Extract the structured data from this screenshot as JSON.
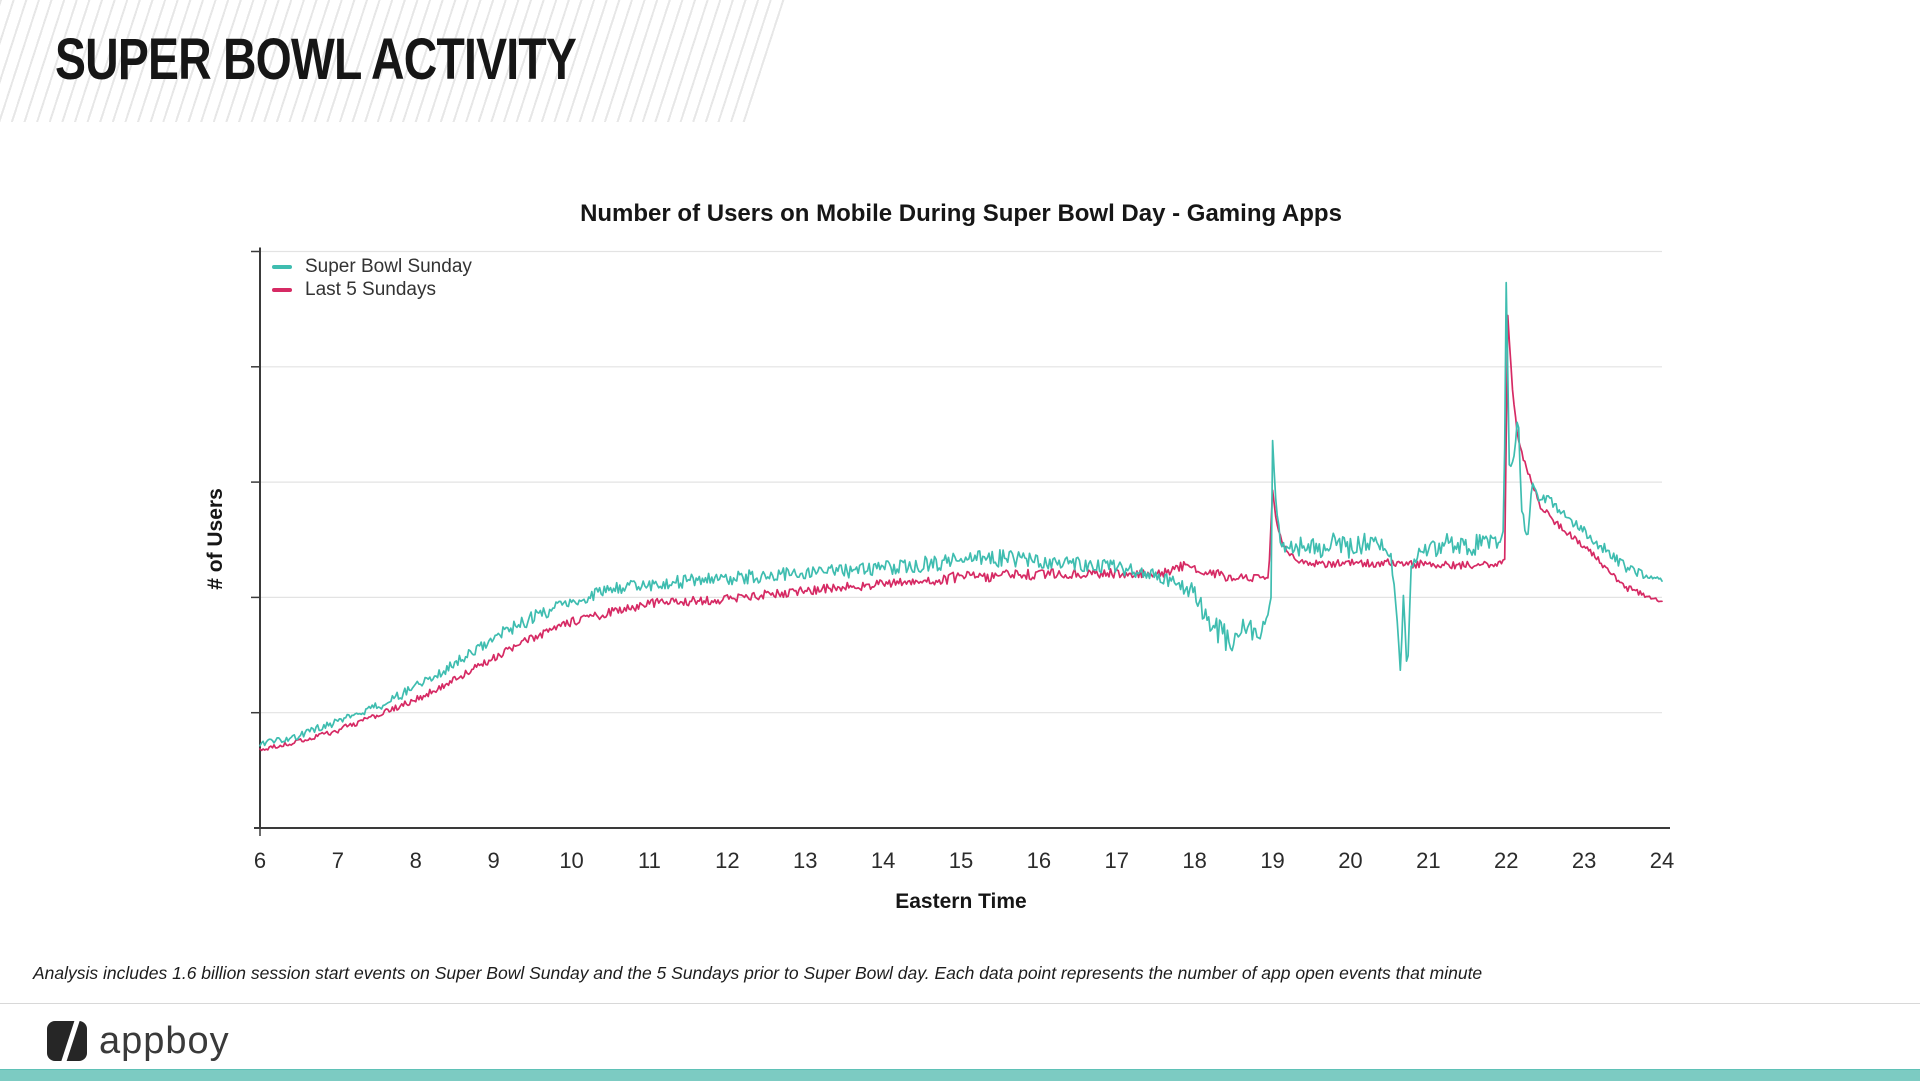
{
  "header": {
    "title": "SUPER BOWL ACTIVITY"
  },
  "chart": {
    "title": "Number of Users on Mobile During Super Bowl Day - Gaming Apps",
    "x_label": "Eastern Time",
    "y_label": "# of Users",
    "legend": [
      {
        "label": "Super Bowl Sunday",
        "color": "#3fbdb0"
      },
      {
        "label": "Last 5 Sundays",
        "color": "#d62a64"
      }
    ]
  },
  "chart_data": {
    "type": "line",
    "title": "Number of Users on Mobile During Super Bowl Day - Gaming Apps",
    "xlabel": "Eastern Time",
    "ylabel": "# of Users",
    "x_range": [
      6,
      24
    ],
    "x_ticks": [
      6,
      7,
      8,
      9,
      10,
      11,
      12,
      13,
      14,
      15,
      16,
      17,
      18,
      19,
      20,
      21,
      22,
      23,
      24
    ],
    "y_range_relative": [
      0,
      100
    ],
    "y_gridlines": 5,
    "y_tick_labels_visible": false,
    "legend_position": "top-left-inside",
    "grid": "horizontal-only",
    "noise_seed": 20,
    "series": [
      {
        "name": "Super Bowl Sunday",
        "color": "#3fbdb0",
        "keypoints": [
          [
            6,
            14.5,
            0.5
          ],
          [
            6.5,
            16,
            0.7
          ],
          [
            7,
            18.5,
            0.7
          ],
          [
            7.5,
            21,
            0.8
          ],
          [
            8,
            24.5,
            0.9
          ],
          [
            8.5,
            28.5,
            0.9
          ],
          [
            9,
            33,
            1
          ],
          [
            9.5,
            36.5,
            1.2
          ],
          [
            10,
            39.5,
            1.2
          ],
          [
            10.5,
            41.5,
            1.2
          ],
          [
            11,
            42.3,
            1.2
          ],
          [
            12,
            43.3,
            1.2
          ],
          [
            13,
            44.2,
            1.2
          ],
          [
            14,
            45,
            1.3
          ],
          [
            15,
            46.5,
            1.5
          ],
          [
            15.5,
            46.8,
            1.5
          ],
          [
            16,
            46.3,
            1.3
          ],
          [
            17,
            45.2,
            1.2
          ],
          [
            17.5,
            43.8,
            1
          ],
          [
            18,
            41,
            1.5
          ],
          [
            18.2,
            35,
            2
          ],
          [
            18.35,
            33.5,
            2.5
          ],
          [
            18.5,
            31.5,
            2
          ],
          [
            18.65,
            35.5,
            2
          ],
          [
            18.8,
            33,
            1.5
          ],
          [
            18.92,
            36,
            1
          ],
          [
            18.98,
            40,
            0.3
          ],
          [
            19,
            67.2,
            0
          ],
          [
            19.04,
            57,
            0.3
          ],
          [
            19.1,
            50,
            1
          ],
          [
            19.2,
            48,
            1.5
          ],
          [
            19.4,
            49,
            1.8
          ],
          [
            19.6,
            48.5,
            1.8
          ],
          [
            19.8,
            49.5,
            1.8
          ],
          [
            20,
            48.5,
            1.8
          ],
          [
            20.2,
            49.5,
            1.8
          ],
          [
            20.4,
            48.8,
            1.6
          ],
          [
            20.52,
            47,
            0.8
          ],
          [
            20.58,
            40,
            1
          ],
          [
            20.64,
            27.5,
            1
          ],
          [
            20.68,
            40,
            0.5
          ],
          [
            20.73,
            27,
            1
          ],
          [
            20.78,
            45,
            0.5
          ],
          [
            20.9,
            48,
            1.2
          ],
          [
            21.1,
            48.8,
            1.8
          ],
          [
            21.3,
            49.5,
            1.8
          ],
          [
            21.5,
            48.8,
            1.8
          ],
          [
            21.7,
            49.5,
            1.8
          ],
          [
            21.9,
            49.8,
            1.2
          ],
          [
            21.97,
            52,
            0.4
          ],
          [
            22,
            94.6,
            0
          ],
          [
            22.04,
            63,
            0.5
          ],
          [
            22.1,
            65,
            2
          ],
          [
            22.15,
            72.5,
            0.6
          ],
          [
            22.2,
            55,
            1.2
          ],
          [
            22.27,
            49.5,
            1
          ],
          [
            22.34,
            60,
            1
          ],
          [
            22.42,
            57.5,
            1
          ],
          [
            22.55,
            57,
            1
          ],
          [
            22.75,
            54.5,
            1
          ],
          [
            23,
            51.5,
            1
          ],
          [
            23.25,
            48.5,
            1
          ],
          [
            23.5,
            45.5,
            1
          ],
          [
            23.75,
            44,
            0.8
          ],
          [
            24,
            43,
            0.2
          ]
        ]
      },
      {
        "name": "Last 5 Sundays",
        "color": "#d62a64",
        "keypoints": [
          [
            6,
            13.5,
            0.4
          ],
          [
            6.5,
            15,
            0.4
          ],
          [
            7,
            17,
            0.5
          ],
          [
            7.5,
            19.5,
            0.5
          ],
          [
            8,
            22.2,
            0.6
          ],
          [
            8.5,
            25.8,
            0.6
          ],
          [
            9,
            29.5,
            0.7
          ],
          [
            9.5,
            33,
            0.7
          ],
          [
            10,
            35.7,
            0.8
          ],
          [
            10.5,
            37.4,
            0.8
          ],
          [
            11,
            39,
            0.8
          ],
          [
            12,
            39.7,
            0.8
          ],
          [
            13,
            41.2,
            0.8
          ],
          [
            14,
            42.3,
            0.8
          ],
          [
            15,
            43.5,
            1
          ],
          [
            16,
            44,
            0.9
          ],
          [
            17,
            44.2,
            0.8
          ],
          [
            17.5,
            44,
            0.8
          ],
          [
            17.9,
            45.5,
            0.9
          ],
          [
            18.1,
            44.8,
            0.8
          ],
          [
            18.4,
            43.6,
            0.8
          ],
          [
            18.7,
            43.3,
            0.7
          ],
          [
            18.95,
            43.5,
            0.3
          ],
          [
            19,
            58.6,
            0
          ],
          [
            19.05,
            53,
            0.2
          ],
          [
            19.12,
            49.5,
            0.5
          ],
          [
            19.25,
            47,
            0.5
          ],
          [
            19.4,
            46,
            0.5
          ],
          [
            19.6,
            45.8,
            0.6
          ],
          [
            20,
            45.9,
            0.7
          ],
          [
            20.5,
            46,
            0.7
          ],
          [
            21,
            45.7,
            0.7
          ],
          [
            21.5,
            45.6,
            0.7
          ],
          [
            21.9,
            45.8,
            0.5
          ],
          [
            21.98,
            46.5,
            0.2
          ],
          [
            22.02,
            88.9,
            0
          ],
          [
            22.08,
            76,
            0.2
          ],
          [
            22.14,
            68.5,
            0.5
          ],
          [
            22.22,
            64,
            0.5
          ],
          [
            22.32,
            60.5,
            0.5
          ],
          [
            22.45,
            55.5,
            0.6
          ],
          [
            22.6,
            53.5,
            0.6
          ],
          [
            22.8,
            51,
            0.6
          ],
          [
            23,
            49,
            0.6
          ],
          [
            23.25,
            45.5,
            0.6
          ],
          [
            23.5,
            42,
            0.6
          ],
          [
            23.75,
            40.5,
            0.5
          ],
          [
            24,
            39.3,
            0.2
          ]
        ]
      }
    ]
  },
  "footnote": {
    "text": "Analysis includes 1.6 billion session start events on Super Bowl Sunday and the 5 Sundays prior to Super Bowl day.  Each data point represents the number of app open events that minute"
  },
  "footer": {
    "brand": "appboy"
  },
  "colors": {
    "series_teal": "#3fbdb0",
    "series_pink": "#d62a64",
    "bottom_bar": "#7ccbc2",
    "gridline": "#e3e3e3",
    "axis": "#3a3a3a"
  }
}
